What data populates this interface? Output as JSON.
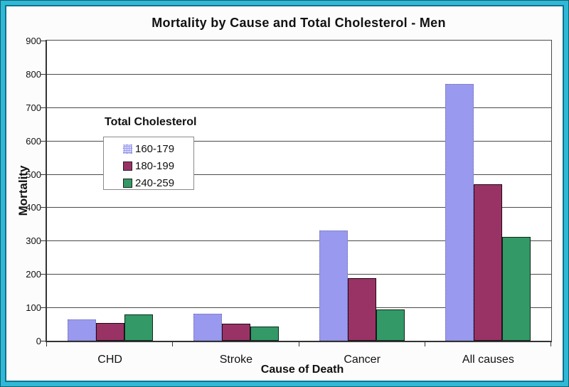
{
  "chart_data": {
    "type": "bar",
    "title": "Mortality by Cause and Total Cholesterol - Men",
    "xlabel": "Cause of Death",
    "ylabel": "Mortality",
    "categories": [
      "CHD",
      "Stroke",
      "Cancer",
      "All causes"
    ],
    "series": [
      {
        "name": "160-179",
        "color": "#9999F0",
        "border_style": "dotted",
        "border_color": "#7070A8",
        "values": [
          63,
          80,
          330,
          769
        ]
      },
      {
        "name": "180-199",
        "color": "#993366",
        "border_style": "solid",
        "border_color": "#1C0A14",
        "values": [
          54,
          52,
          187,
          470
        ]
      },
      {
        "name": "240-259",
        "color": "#339966",
        "border_style": "solid",
        "border_color": "#0E2A1C",
        "values": [
          79,
          43,
          93,
          311
        ]
      }
    ],
    "ylim": [
      0,
      900
    ],
    "yticks": [
      0,
      100,
      200,
      300,
      400,
      500,
      600,
      700,
      800,
      900
    ],
    "grid": "horizontal",
    "legend": {
      "title": "Total Cholesterol",
      "position": "inside-upper-left",
      "entries": [
        "160-179",
        "180-199",
        "240-259"
      ]
    },
    "plot_bg": "#FFFFFF",
    "frame": {
      "band_color": "#2FB9D6",
      "outer_edge_color": "#14606E",
      "inner_edge_color": "#0F7291"
    }
  }
}
